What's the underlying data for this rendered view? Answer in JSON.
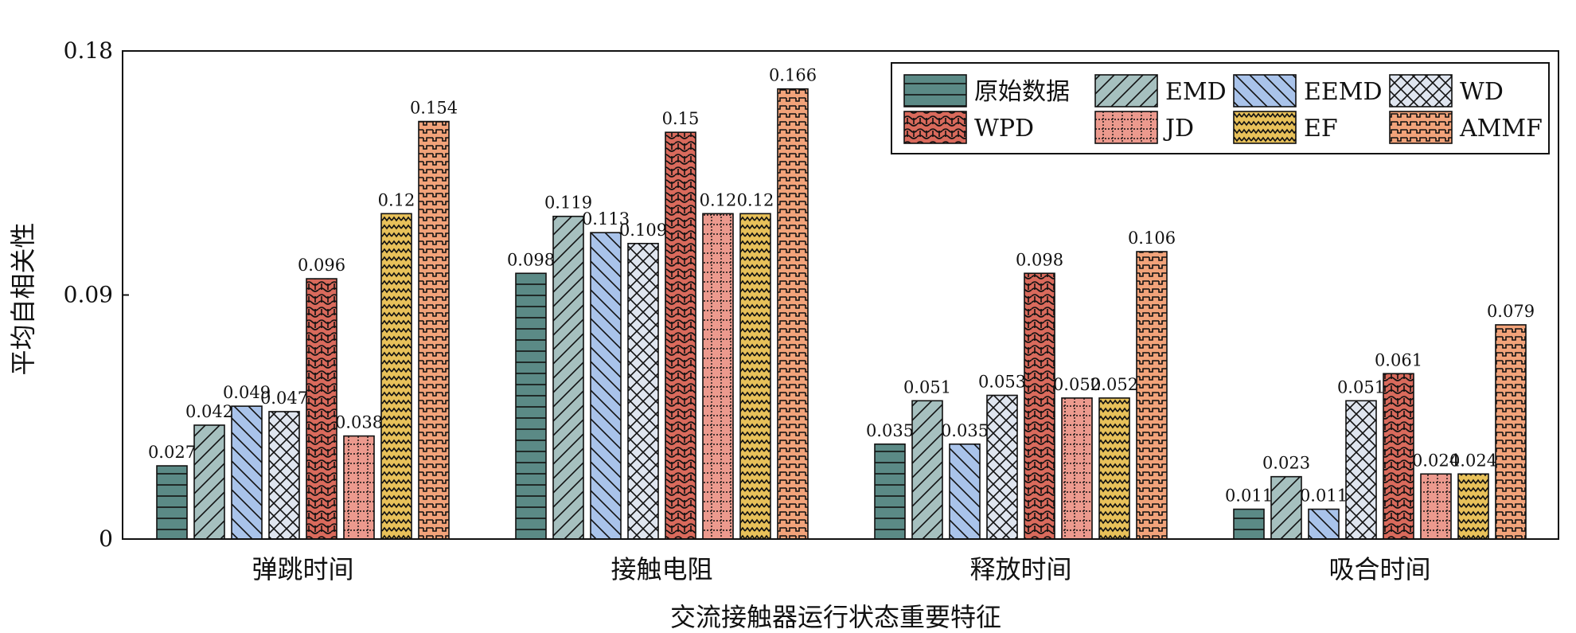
{
  "chart_data": {
    "type": "bar",
    "xlabel": "交流接触器运行状态重要特征",
    "ylabel": "平均自相关性",
    "ylim": [
      0,
      0.18
    ],
    "yticks": [
      0,
      0.09,
      0.18
    ],
    "ytick_labels": [
      "0",
      "0.09",
      "0.18"
    ],
    "categories": [
      "弹跳时间",
      "接触电阻",
      "释放时间",
      "吸合时间"
    ],
    "legend_position": "top-right",
    "legend_columns": 4,
    "series": [
      {
        "name": "原始数据",
        "values": [
          0.027,
          0.098,
          0.035,
          0.011
        ],
        "labels": [
          "0.027",
          "0.098",
          "0.035",
          "0.011"
        ],
        "color": "#5b8a86",
        "pattern": "horizontal"
      },
      {
        "name": "EMD",
        "values": [
          0.042,
          0.119,
          0.051,
          0.023
        ],
        "labels": [
          "0.042",
          "0.119",
          "0.051",
          "0.023"
        ],
        "color": "#a6c0bf",
        "pattern": "forward-diagonal"
      },
      {
        "name": "EEMD",
        "values": [
          0.049,
          0.113,
          0.035,
          0.011
        ],
        "labels": [
          "0.049",
          "0.113",
          "0.035",
          "0.011"
        ],
        "color": "#a9c3ea",
        "pattern": "back-diagonal"
      },
      {
        "name": "WD",
        "values": [
          0.047,
          0.109,
          0.053,
          0.051
        ],
        "labels": [
          "0.047",
          "0.109",
          "0.053",
          "0.051"
        ],
        "color": "#dfe5ef",
        "pattern": "crosshatch"
      },
      {
        "name": "WPD",
        "values": [
          0.096,
          0.15,
          0.098,
          0.061
        ],
        "labels": [
          "0.096",
          "0.15",
          "0.098",
          "0.061"
        ],
        "color": "#d96a5c",
        "pattern": "wave"
      },
      {
        "name": "JD",
        "values": [
          0.038,
          0.12,
          0.052,
          0.024
        ],
        "labels": [
          "0.038",
          "0.12",
          "0.052",
          "0.024"
        ],
        "color": "#ec9a8e",
        "pattern": "dotted-grid"
      },
      {
        "name": "EF",
        "values": [
          0.12,
          0.12,
          0.052,
          0.024
        ],
        "labels": [
          "0.12",
          "0.12",
          "0.052",
          "0.024"
        ],
        "color": "#e8c15a",
        "pattern": "zigzag"
      },
      {
        "name": "AMMF",
        "values": [
          0.154,
          0.166,
          0.106,
          0.079
        ],
        "labels": [
          "0.154",
          "0.166",
          "0.106",
          "0.079"
        ],
        "color": "#f2a37a",
        "pattern": "dashed-rows"
      }
    ]
  }
}
